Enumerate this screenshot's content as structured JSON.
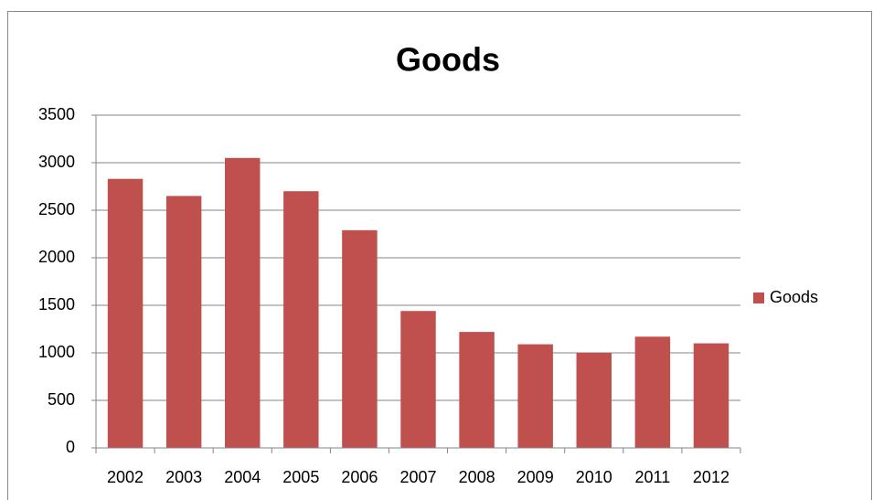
{
  "chart_data": {
    "type": "bar",
    "title": "Goods",
    "categories": [
      "2002",
      "2003",
      "2004",
      "2005",
      "2006",
      "2007",
      "2008",
      "2009",
      "2010",
      "2011",
      "2012"
    ],
    "series": [
      {
        "name": "Goods",
        "color": "#c0504d",
        "values": [
          2830,
          2650,
          3050,
          2700,
          2290,
          1440,
          1220,
          1090,
          1000,
          1170,
          1100
        ]
      }
    ],
    "ylim": [
      0,
      3500
    ],
    "yticks": [
      0,
      500,
      1000,
      1500,
      2000,
      2500,
      3000,
      3500
    ],
    "grid": true,
    "legend": "right"
  }
}
